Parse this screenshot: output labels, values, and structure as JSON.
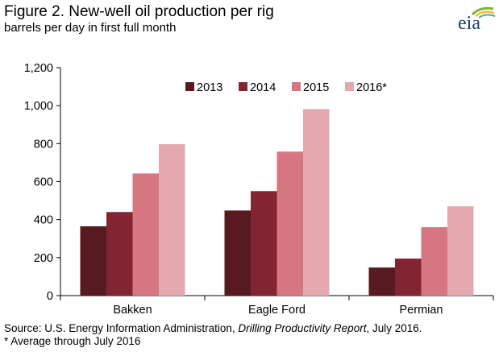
{
  "header": {
    "title": "Figure 2. New-well oil production per rig",
    "subtitle": "barrels per day in first full month",
    "logo_text": "eia"
  },
  "footer": {
    "source_prefix": "Source: U.S. Energy Information Administration, ",
    "source_report": "Drilling Productivity Report",
    "source_suffix": ", July 2016.",
    "note": "* Average through July 2016"
  },
  "colors": {
    "2013": "#561a20",
    "2014": "#832433",
    "2015": "#d67681",
    "2016*": "#e4a8af",
    "axis": "#000000",
    "logo_blue": "#1d3f6e",
    "logo_green": "#7ab342",
    "logo_yellow": "#f3c21d",
    "logo_lightblue": "#4aa3d8"
  },
  "chart_data": {
    "type": "bar",
    "categories": [
      "Bakken",
      "Eagle Ford",
      "Permian"
    ],
    "series": [
      {
        "name": "2013",
        "values": [
          365,
          448,
          148
        ]
      },
      {
        "name": "2014",
        "values": [
          440,
          550,
          195
        ]
      },
      {
        "name": "2015",
        "values": [
          643,
          758,
          360
        ]
      },
      {
        "name": "2016*",
        "values": [
          797,
          982,
          470
        ]
      }
    ],
    "ylim": [
      0,
      1200
    ],
    "yticks": [
      0,
      200,
      400,
      600,
      800,
      1000,
      1200
    ],
    "ytick_labels": [
      "0",
      "200",
      "400",
      "600",
      "800",
      "1,000",
      "1,200"
    ],
    "grid": false,
    "legend_position": "top-center"
  }
}
